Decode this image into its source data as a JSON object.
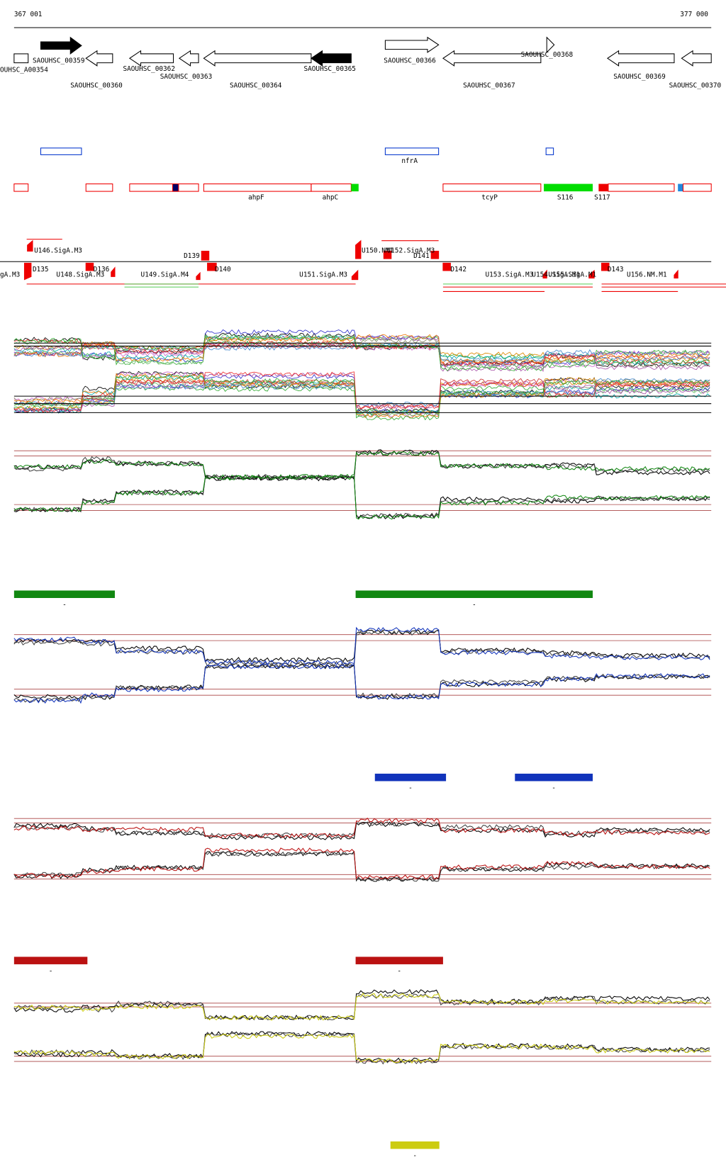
{
  "ruler": {
    "start": "367 001",
    "end": "377 000"
  },
  "genes": [
    "OUHSC_A00354",
    "SAOUHSC_00359",
    "SAOUHSC_00360",
    "SAOUHSC_00362",
    "SAOUHSC_00363",
    "SAOUHSC_00364",
    "SAOUHSC_00365",
    "SAOUHSC_00366",
    "SAOUHSC_00367",
    "SAOUHSC_00368",
    "SAOUHSC_00369",
    "SAOUHSC_00370"
  ],
  "features": [
    "nfrA",
    "ahpF",
    "ahpC",
    "tcyP",
    "S116",
    "S117"
  ],
  "promoters": [
    "U146.SigA.M3",
    "gA.M3",
    "D135",
    "D136",
    "U148.SigA.M3",
    "D139",
    "D140",
    "U149.SigA.M4",
    "U151.SigA.M3",
    "U150.NM1",
    "U152.SigA.M3",
    "D141",
    "D142",
    "U153.SigA.M3",
    "U154.SigA.M1",
    "U155.SigA.M1",
    "D143",
    "U156.NM.M1"
  ],
  "segment_labels": [
    "-",
    "-",
    "-",
    "-",
    "-",
    "-",
    "-"
  ]
}
